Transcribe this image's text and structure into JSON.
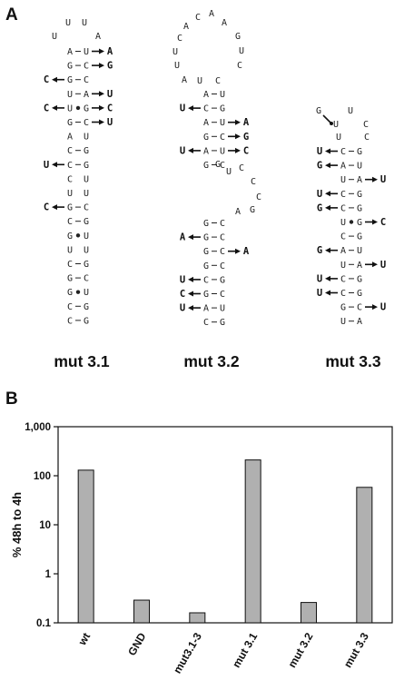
{
  "panels": {
    "a": "A",
    "b": "B"
  },
  "structures": [
    {
      "name": "mut 3.1",
      "loop": [
        "U",
        "U",
        "U",
        "A"
      ],
      "stem": [
        {
          "l": "A",
          "r": "U",
          "bond": "-",
          "ml": "",
          "mr": "A"
        },
        {
          "l": "G",
          "r": "C",
          "bond": "-",
          "ml": "",
          "mr": "G"
        },
        {
          "l": "G",
          "r": "C",
          "bond": "-",
          "ml": "C",
          "mr": ""
        },
        {
          "l": "U",
          "r": "A",
          "bond": "-",
          "ml": "",
          "mr": "U"
        },
        {
          "l": "U",
          "r": "G",
          "bond": "•",
          "ml": "C",
          "mr": "C"
        },
        {
          "l": "G",
          "r": "C",
          "bond": "-",
          "ml": "",
          "mr": "U"
        },
        {
          "l": "A",
          "r": "U",
          "bond": "",
          "ml": "",
          "mr": ""
        },
        {
          "l": "C",
          "r": "G",
          "bond": "-",
          "ml": "",
          "mr": ""
        },
        {
          "l": "C",
          "r": "G",
          "bond": "-",
          "ml": "U",
          "mr": ""
        },
        {
          "l": "C",
          "r": "U",
          "bond": "",
          "ml": "",
          "mr": ""
        },
        {
          "l": "U",
          "r": "U",
          "bond": "",
          "ml": "",
          "mr": ""
        },
        {
          "l": "G",
          "r": "C",
          "bond": "-",
          "ml": "C",
          "mr": ""
        },
        {
          "l": "C",
          "r": "G",
          "bond": "-",
          "ml": "",
          "mr": ""
        },
        {
          "l": "G",
          "r": "U",
          "bond": "•",
          "ml": "",
          "mr": ""
        },
        {
          "l": "U",
          "r": "U",
          "bond": "",
          "ml": "",
          "mr": ""
        },
        {
          "l": "C",
          "r": "G",
          "bond": "-",
          "ml": "",
          "mr": ""
        },
        {
          "l": "G",
          "r": "C",
          "bond": "-",
          "ml": "",
          "mr": ""
        },
        {
          "l": "G",
          "r": "U",
          "bond": "•",
          "ml": "",
          "mr": ""
        },
        {
          "l": "C",
          "r": "G",
          "bond": "-",
          "ml": "",
          "mr": ""
        },
        {
          "l": "C",
          "r": "G",
          "bond": "-",
          "ml": "",
          "mr": ""
        }
      ]
    },
    {
      "name": "mut 3.2",
      "loop": [
        "A",
        "U",
        "U",
        "C",
        "A",
        "C",
        "A",
        "A",
        "G",
        "U",
        "C"
      ],
      "stem": [
        {
          "l": "A",
          "r": "U",
          "bond": "-",
          "ml": "",
          "mr": ""
        },
        {
          "l": "C",
          "r": "G",
          "bond": "-",
          "ml": "U",
          "mr": ""
        },
        {
          "l": "A",
          "r": "U",
          "bond": "-",
          "ml": "",
          "mr": "A"
        },
        {
          "l": "G",
          "r": "C",
          "bond": "-",
          "ml": "",
          "mr": "G"
        },
        {
          "l": "A",
          "r": "U",
          "bond": "-",
          "ml": "U",
          "mr": "C"
        },
        {
          "l": "G",
          "r": "C",
          "bond": "-",
          "ml": "",
          "mr": ""
        }
      ],
      "bulge": [
        "G",
        "U",
        "C",
        "C",
        "C",
        "G",
        "A"
      ],
      "stem2": [
        {
          "l": "G",
          "r": "C",
          "bond": "-",
          "ml": "",
          "mr": ""
        },
        {
          "l": "G",
          "r": "C",
          "bond": "-",
          "ml": "A",
          "mr": ""
        },
        {
          "l": "G",
          "r": "C",
          "bond": "-",
          "ml": "",
          "mr": "A"
        },
        {
          "l": "G",
          "r": "C",
          "bond": "-",
          "ml": "",
          "mr": ""
        },
        {
          "l": "C",
          "r": "G",
          "bond": "-",
          "ml": "U",
          "mr": ""
        },
        {
          "l": "G",
          "r": "C",
          "bond": "-",
          "ml": "C",
          "mr": ""
        },
        {
          "l": "A",
          "r": "U",
          "bond": "-",
          "ml": "U",
          "mr": ""
        },
        {
          "l": "C",
          "r": "G",
          "bond": "-",
          "ml": "",
          "mr": ""
        }
      ]
    },
    {
      "name": "mut 3.3",
      "loop": [
        "G",
        "U",
        "U",
        "C",
        "U",
        "C"
      ],
      "stem": [
        {
          "l": "C",
          "r": "G",
          "bond": "-",
          "ml": "U",
          "mr": ""
        },
        {
          "l": "A",
          "r": "U",
          "bond": "-",
          "ml": "G",
          "mr": ""
        },
        {
          "l": "U",
          "r": "A",
          "bond": "-",
          "ml": "",
          "mr": "U"
        },
        {
          "l": "C",
          "r": "G",
          "bond": "-",
          "ml": "U",
          "mr": ""
        },
        {
          "l": "C",
          "r": "G",
          "bond": "-",
          "ml": "G",
          "mr": ""
        },
        {
          "l": "U",
          "r": "G",
          "bond": "•",
          "ml": "",
          "mr": "C"
        },
        {
          "l": "C",
          "r": "G",
          "bond": "-",
          "ml": "",
          "mr": ""
        },
        {
          "l": "A",
          "r": "U",
          "bond": "-",
          "ml": "G",
          "mr": ""
        },
        {
          "l": "U",
          "r": "A",
          "bond": "-",
          "ml": "",
          "mr": "U"
        },
        {
          "l": "C",
          "r": "G",
          "bond": "-",
          "ml": "U",
          "mr": ""
        },
        {
          "l": "C",
          "r": "G",
          "bond": "-",
          "ml": "U",
          "mr": ""
        },
        {
          "l": "G",
          "r": "C",
          "bond": "-",
          "ml": "",
          "mr": "U"
        },
        {
          "l": "U",
          "r": "A",
          "bond": "-",
          "ml": "",
          "mr": ""
        }
      ]
    }
  ],
  "chart_data": {
    "type": "bar",
    "ylabel": "% 48h to 4h",
    "yscale": "log",
    "ylim": [
      0.1,
      1000
    ],
    "yticks": [
      "0.1",
      "1",
      "10",
      "100",
      "1,000"
    ],
    "categories": [
      "wt",
      "GND",
      "mut3.1-3",
      "mut 3.1",
      "mut 3.2",
      "mut 3.3"
    ],
    "values": [
      130,
      0.29,
      0.16,
      210,
      0.26,
      58
    ],
    "bar_color": "#b0b0b0"
  }
}
